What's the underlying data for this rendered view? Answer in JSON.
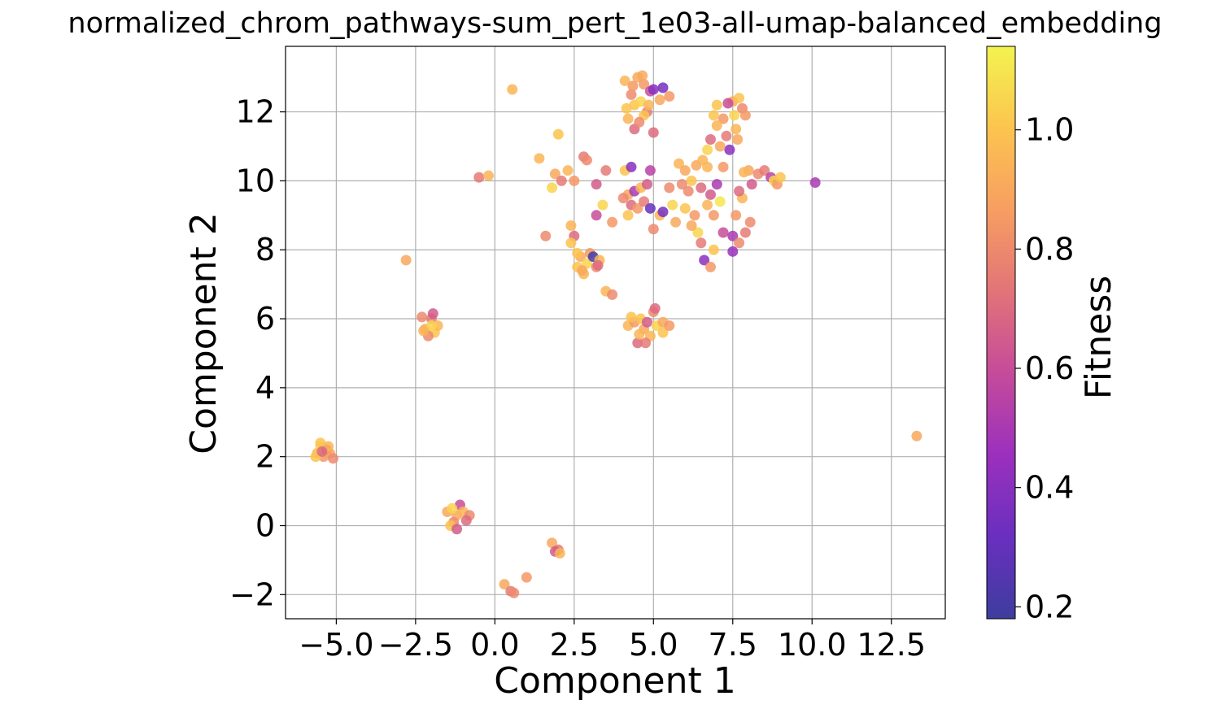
{
  "chart_data": {
    "type": "scatter",
    "title": "normalized_chrom_pathways-sum_pert_1e03-all-umap-balanced_embedding",
    "xlabel": "Component 1",
    "ylabel": "Component 2",
    "xlim": [
      -6.6,
      14.2
    ],
    "ylim": [
      -2.7,
      13.9
    ],
    "xticks": [
      -5.0,
      -2.5,
      0.0,
      2.5,
      5.0,
      7.5,
      10.0,
      12.5
    ],
    "xtick_labels": [
      "−5.0",
      "−2.5",
      "0.0",
      "2.5",
      "5.0",
      "7.5",
      "10.0",
      "12.5"
    ],
    "yticks": [
      -2,
      0,
      2,
      4,
      6,
      8,
      10,
      12
    ],
    "ytick_labels": [
      "−2",
      "0",
      "2",
      "4",
      "6",
      "8",
      "10",
      "12"
    ],
    "grid": true,
    "colorbar": {
      "label": "Fitness",
      "range": [
        0.18,
        1.14
      ],
      "ticks": [
        0.2,
        0.4,
        0.6,
        0.8,
        1.0
      ],
      "tick_labels": [
        "0.2",
        "0.4",
        "0.6",
        "0.8",
        "1.0"
      ],
      "colormap": "plasma",
      "colors": [
        "#3d3d9e",
        "#6a2fbf",
        "#9b30bd",
        "#c54b9a",
        "#e27378",
        "#f79e62",
        "#fcc44f",
        "#f3f350"
      ]
    },
    "points": [
      {
        "x": -5.6,
        "y": 2.1,
        "c": 0.95
      },
      {
        "x": -5.5,
        "y": 2.3,
        "c": 1.05
      },
      {
        "x": -5.4,
        "y": 2.0,
        "c": 0.85
      },
      {
        "x": -5.3,
        "y": 2.2,
        "c": 0.6
      },
      {
        "x": -5.2,
        "y": 2.1,
        "c": 0.9
      },
      {
        "x": -5.1,
        "y": 1.95,
        "c": 0.8
      },
      {
        "x": -5.5,
        "y": 2.4,
        "c": 1.0
      },
      {
        "x": -5.65,
        "y": 2.0,
        "c": 1.0
      },
      {
        "x": -5.25,
        "y": 2.3,
        "c": 0.95
      },
      {
        "x": -5.45,
        "y": 2.15,
        "c": 0.7
      },
      {
        "x": -2.8,
        "y": 7.7,
        "c": 0.9
      },
      {
        "x": -2.2,
        "y": 5.7,
        "c": 0.9
      },
      {
        "x": -2.0,
        "y": 6.0,
        "c": 0.75
      },
      {
        "x": -1.9,
        "y": 5.6,
        "c": 1.0
      },
      {
        "x": -2.1,
        "y": 5.5,
        "c": 0.8
      },
      {
        "x": -1.8,
        "y": 5.8,
        "c": 0.95
      },
      {
        "x": -2.3,
        "y": 6.05,
        "c": 0.8
      },
      {
        "x": -2.0,
        "y": 5.8,
        "c": 1.05
      },
      {
        "x": -1.95,
        "y": 6.15,
        "c": 0.65
      },
      {
        "x": -2.25,
        "y": 5.65,
        "c": 0.95
      },
      {
        "x": -1.2,
        "y": 0.3,
        "c": 0.9
      },
      {
        "x": -1.1,
        "y": 0.6,
        "c": 0.6
      },
      {
        "x": -1.3,
        "y": 0.1,
        "c": 0.8
      },
      {
        "x": -1.0,
        "y": 0.4,
        "c": 0.95
      },
      {
        "x": -0.8,
        "y": 0.3,
        "c": 0.8
      },
      {
        "x": -1.5,
        "y": 0.4,
        "c": 0.9
      },
      {
        "x": -1.4,
        "y": 0.0,
        "c": 1.0
      },
      {
        "x": -1.2,
        "y": -0.1,
        "c": 0.65
      },
      {
        "x": -1.35,
        "y": 0.5,
        "c": 1.05
      },
      {
        "x": -0.9,
        "y": 0.15,
        "c": 0.7
      },
      {
        "x": -0.5,
        "y": 10.1,
        "c": 0.75
      },
      {
        "x": -0.2,
        "y": 10.15,
        "c": 0.95
      },
      {
        "x": 0.55,
        "y": 12.65,
        "c": 0.95
      },
      {
        "x": 0.3,
        "y": -1.7,
        "c": 0.9
      },
      {
        "x": 0.5,
        "y": -1.9,
        "c": 0.75
      },
      {
        "x": 0.6,
        "y": -1.95,
        "c": 0.8
      },
      {
        "x": 1.0,
        "y": -1.5,
        "c": 0.85
      },
      {
        "x": 1.8,
        "y": -0.5,
        "c": 0.9
      },
      {
        "x": 2.0,
        "y": -0.7,
        "c": 0.75
      },
      {
        "x": 1.9,
        "y": -0.75,
        "c": 0.65
      },
      {
        "x": 2.05,
        "y": -0.8,
        "c": 0.95
      },
      {
        "x": 1.4,
        "y": 10.65,
        "c": 0.95
      },
      {
        "x": 1.6,
        "y": 8.4,
        "c": 0.8
      },
      {
        "x": 2.0,
        "y": 11.35,
        "c": 1.0
      },
      {
        "x": 1.9,
        "y": 10.2,
        "c": 0.9
      },
      {
        "x": 2.1,
        "y": 10.0,
        "c": 0.75
      },
      {
        "x": 2.3,
        "y": 10.3,
        "c": 0.95
      },
      {
        "x": 2.5,
        "y": 10.0,
        "c": 0.85
      },
      {
        "x": 1.8,
        "y": 9.8,
        "c": 1.05
      },
      {
        "x": 2.4,
        "y": 8.7,
        "c": 0.95
      },
      {
        "x": 2.5,
        "y": 8.4,
        "c": 0.7
      },
      {
        "x": 2.4,
        "y": 8.2,
        "c": 1.0
      },
      {
        "x": 2.8,
        "y": 10.7,
        "c": 0.75
      },
      {
        "x": 2.9,
        "y": 10.6,
        "c": 0.8
      },
      {
        "x": 3.2,
        "y": 9.9,
        "c": 0.65
      },
      {
        "x": 2.6,
        "y": 7.5,
        "c": 1.0
      },
      {
        "x": 2.7,
        "y": 7.8,
        "c": 0.9
      },
      {
        "x": 2.8,
        "y": 7.3,
        "c": 0.95
      },
      {
        "x": 2.9,
        "y": 7.6,
        "c": 1.05
      },
      {
        "x": 3.0,
        "y": 7.9,
        "c": 0.85
      },
      {
        "x": 3.1,
        "y": 7.8,
        "c": 0.2
      },
      {
        "x": 3.2,
        "y": 7.5,
        "c": 0.8
      },
      {
        "x": 3.3,
        "y": 7.7,
        "c": 0.95
      },
      {
        "x": 2.6,
        "y": 7.9,
        "c": 1.0
      },
      {
        "x": 2.75,
        "y": 7.4,
        "c": 0.9
      },
      {
        "x": 3.25,
        "y": 7.55,
        "c": 0.7
      },
      {
        "x": 3.2,
        "y": 9.0,
        "c": 0.6
      },
      {
        "x": 3.4,
        "y": 9.3,
        "c": 1.05
      },
      {
        "x": 3.5,
        "y": 6.8,
        "c": 0.95
      },
      {
        "x": 3.7,
        "y": 6.7,
        "c": 0.8
      },
      {
        "x": 3.7,
        "y": 8.8,
        "c": 0.85
      },
      {
        "x": 3.5,
        "y": 10.3,
        "c": 0.75
      },
      {
        "x": 4.1,
        "y": 10.3,
        "c": 1.0
      },
      {
        "x": 4.2,
        "y": 9.6,
        "c": 0.9
      },
      {
        "x": 4.3,
        "y": 9.3,
        "c": 0.7
      },
      {
        "x": 4.4,
        "y": 9.7,
        "c": 0.5
      },
      {
        "x": 4.5,
        "y": 9.2,
        "c": 0.85
      },
      {
        "x": 4.6,
        "y": 9.8,
        "c": 0.95
      },
      {
        "x": 4.3,
        "y": 10.4,
        "c": 0.4
      },
      {
        "x": 4.7,
        "y": 9.4,
        "c": 0.75
      },
      {
        "x": 4.8,
        "y": 9.9,
        "c": 0.65
      },
      {
        "x": 4.9,
        "y": 9.2,
        "c": 0.3
      },
      {
        "x": 4.9,
        "y": 10.3,
        "c": 0.55
      },
      {
        "x": 5.0,
        "y": 8.6,
        "c": 0.8
      },
      {
        "x": 5.2,
        "y": 9.0,
        "c": 0.95
      },
      {
        "x": 5.3,
        "y": 9.1,
        "c": 0.35
      },
      {
        "x": 5.5,
        "y": 9.8,
        "c": 0.8
      },
      {
        "x": 5.6,
        "y": 9.3,
        "c": 1.05
      },
      {
        "x": 5.7,
        "y": 8.8,
        "c": 0.9
      },
      {
        "x": 4.2,
        "y": 9.0,
        "c": 1.0
      },
      {
        "x": 4.05,
        "y": 9.5,
        "c": 0.8
      },
      {
        "x": 4.1,
        "y": 12.9,
        "c": 0.95
      },
      {
        "x": 4.3,
        "y": 12.5,
        "c": 0.8
      },
      {
        "x": 4.4,
        "y": 12.2,
        "c": 1.0
      },
      {
        "x": 4.5,
        "y": 13.0,
        "c": 0.9
      },
      {
        "x": 4.6,
        "y": 12.3,
        "c": 1.05
      },
      {
        "x": 4.7,
        "y": 12.8,
        "c": 0.85
      },
      {
        "x": 4.8,
        "y": 12.0,
        "c": 0.75
      },
      {
        "x": 4.9,
        "y": 12.6,
        "c": 0.6
      },
      {
        "x": 5.0,
        "y": 12.65,
        "c": 0.4
      },
      {
        "x": 5.2,
        "y": 12.35,
        "c": 0.9
      },
      {
        "x": 5.3,
        "y": 12.7,
        "c": 0.35
      },
      {
        "x": 5.5,
        "y": 12.45,
        "c": 0.85
      },
      {
        "x": 4.2,
        "y": 11.8,
        "c": 0.95
      },
      {
        "x": 4.4,
        "y": 11.5,
        "c": 0.7
      },
      {
        "x": 4.7,
        "y": 11.9,
        "c": 1.0
      },
      {
        "x": 4.15,
        "y": 12.1,
        "c": 1.0
      },
      {
        "x": 4.55,
        "y": 11.7,
        "c": 0.8
      },
      {
        "x": 4.85,
        "y": 12.2,
        "c": 0.95
      },
      {
        "x": 5.0,
        "y": 11.4,
        "c": 0.7
      },
      {
        "x": 4.35,
        "y": 12.75,
        "c": 0.85
      },
      {
        "x": 4.65,
        "y": 13.05,
        "c": 0.9
      },
      {
        "x": 4.2,
        "y": 5.8,
        "c": 0.95
      },
      {
        "x": 4.4,
        "y": 5.9,
        "c": 0.85
      },
      {
        "x": 4.5,
        "y": 5.3,
        "c": 0.7
      },
      {
        "x": 4.6,
        "y": 6.0,
        "c": 1.0
      },
      {
        "x": 4.7,
        "y": 5.7,
        "c": 0.9
      },
      {
        "x": 4.8,
        "y": 5.9,
        "c": 0.65
      },
      {
        "x": 4.9,
        "y": 5.5,
        "c": 0.95
      },
      {
        "x": 5.0,
        "y": 6.2,
        "c": 0.8
      },
      {
        "x": 5.1,
        "y": 5.8,
        "c": 1.05
      },
      {
        "x": 5.3,
        "y": 5.9,
        "c": 0.9
      },
      {
        "x": 5.3,
        "y": 5.6,
        "c": 1.0
      },
      {
        "x": 5.5,
        "y": 5.8,
        "c": 0.85
      },
      {
        "x": 4.3,
        "y": 6.05,
        "c": 1.0
      },
      {
        "x": 4.75,
        "y": 5.3,
        "c": 0.75
      },
      {
        "x": 5.05,
        "y": 6.3,
        "c": 0.7
      },
      {
        "x": 4.55,
        "y": 5.55,
        "c": 0.95
      },
      {
        "x": 5.8,
        "y": 10.5,
        "c": 0.95
      },
      {
        "x": 6.0,
        "y": 10.3,
        "c": 0.9
      },
      {
        "x": 6.1,
        "y": 9.7,
        "c": 0.8
      },
      {
        "x": 6.2,
        "y": 10.0,
        "c": 1.0
      },
      {
        "x": 6.3,
        "y": 9.0,
        "c": 0.85
      },
      {
        "x": 6.4,
        "y": 8.5,
        "c": 1.05
      },
      {
        "x": 6.5,
        "y": 9.8,
        "c": 0.7
      },
      {
        "x": 6.6,
        "y": 7.7,
        "c": 0.4
      },
      {
        "x": 6.7,
        "y": 10.4,
        "c": 0.95
      },
      {
        "x": 6.8,
        "y": 9.6,
        "c": 0.65
      },
      {
        "x": 6.9,
        "y": 9.0,
        "c": 0.85
      },
      {
        "x": 7.0,
        "y": 9.9,
        "c": 0.5
      },
      {
        "x": 7.1,
        "y": 9.4,
        "c": 1.1
      },
      {
        "x": 6.2,
        "y": 8.7,
        "c": 0.9
      },
      {
        "x": 6.5,
        "y": 8.2,
        "c": 0.75
      },
      {
        "x": 6.8,
        "y": 7.5,
        "c": 0.85
      },
      {
        "x": 6.9,
        "y": 8.0,
        "c": 1.0
      },
      {
        "x": 7.2,
        "y": 8.5,
        "c": 0.6
      },
      {
        "x": 6.0,
        "y": 9.2,
        "c": 1.0
      },
      {
        "x": 5.9,
        "y": 9.9,
        "c": 0.8
      },
      {
        "x": 6.7,
        "y": 9.3,
        "c": 0.95
      },
      {
        "x": 7.2,
        "y": 10.4,
        "c": 0.85
      },
      {
        "x": 6.35,
        "y": 10.45,
        "c": 0.9
      },
      {
        "x": 6.55,
        "y": 10.6,
        "c": 0.95
      },
      {
        "x": 7.0,
        "y": 12.2,
        "c": 1.0
      },
      {
        "x": 7.2,
        "y": 11.8,
        "c": 0.85
      },
      {
        "x": 7.3,
        "y": 11.3,
        "c": 0.75
      },
      {
        "x": 7.4,
        "y": 10.9,
        "c": 0.4
      },
      {
        "x": 7.5,
        "y": 12.3,
        "c": 0.9
      },
      {
        "x": 7.6,
        "y": 11.5,
        "c": 0.95
      },
      {
        "x": 7.7,
        "y": 12.4,
        "c": 1.0
      },
      {
        "x": 7.8,
        "y": 12.1,
        "c": 0.8
      },
      {
        "x": 7.9,
        "y": 11.9,
        "c": 0.85
      },
      {
        "x": 7.0,
        "y": 11.6,
        "c": 0.95
      },
      {
        "x": 6.8,
        "y": 11.2,
        "c": 0.7
      },
      {
        "x": 6.7,
        "y": 10.9,
        "c": 1.05
      },
      {
        "x": 7.1,
        "y": 11.0,
        "c": 0.9
      },
      {
        "x": 6.9,
        "y": 11.9,
        "c": 1.0
      },
      {
        "x": 7.35,
        "y": 12.25,
        "c": 0.6
      },
      {
        "x": 7.65,
        "y": 11.2,
        "c": 0.9
      },
      {
        "x": 7.55,
        "y": 11.9,
        "c": 1.05
      },
      {
        "x": 7.5,
        "y": 8.4,
        "c": 0.5
      },
      {
        "x": 7.5,
        "y": 7.95,
        "c": 0.45
      },
      {
        "x": 7.7,
        "y": 8.2,
        "c": 0.8
      },
      {
        "x": 7.6,
        "y": 9.0,
        "c": 0.85
      },
      {
        "x": 7.8,
        "y": 9.5,
        "c": 0.95
      },
      {
        "x": 7.9,
        "y": 8.5,
        "c": 0.75
      },
      {
        "x": 8.0,
        "y": 10.3,
        "c": 0.9
      },
      {
        "x": 8.1,
        "y": 9.9,
        "c": 0.65
      },
      {
        "x": 8.3,
        "y": 10.2,
        "c": 0.8
      },
      {
        "x": 8.5,
        "y": 10.3,
        "c": 0.75
      },
      {
        "x": 8.7,
        "y": 10.1,
        "c": 0.55
      },
      {
        "x": 8.8,
        "y": 10.0,
        "c": 1.05
      },
      {
        "x": 8.9,
        "y": 9.9,
        "c": 0.85
      },
      {
        "x": 9.0,
        "y": 10.1,
        "c": 1.0
      },
      {
        "x": 7.7,
        "y": 9.7,
        "c": 0.7
      },
      {
        "x": 8.05,
        "y": 8.8,
        "c": 0.8
      },
      {
        "x": 7.85,
        "y": 10.25,
        "c": 0.95
      },
      {
        "x": 10.1,
        "y": 9.95,
        "c": 0.5
      },
      {
        "x": 13.3,
        "y": 2.6,
        "c": 0.9
      }
    ]
  }
}
